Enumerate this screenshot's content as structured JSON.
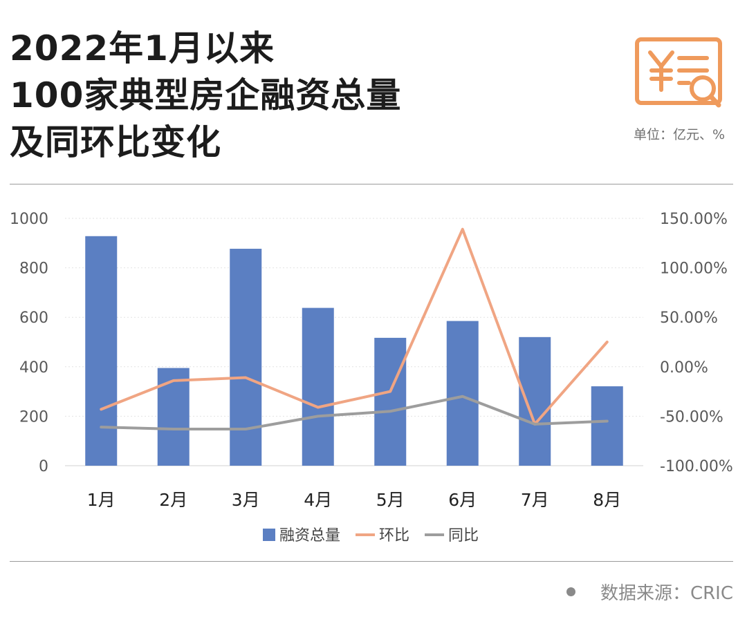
{
  "header": {
    "title_lines": [
      "2022年1月以来",
      "100家典型房企融资总量",
      "及同环比变化"
    ],
    "unit": "单位：亿元、%"
  },
  "footer": {
    "source": "数据来源：CRIC"
  },
  "colors": {
    "bar": "#5b7fc2",
    "mom": "#f0a583",
    "yoy": "#9d9d9d",
    "icon": "#ef9a5c"
  },
  "icon": {
    "name": "finance-search-icon"
  },
  "chart_data": {
    "type": "bar",
    "categories": [
      "1月",
      "2月",
      "3月",
      "4月",
      "5月",
      "6月",
      "7月",
      "8月"
    ],
    "series": [
      {
        "name": "融资总量",
        "type": "bar",
        "axis": "left",
        "values": [
          928,
          395,
          877,
          638,
          517,
          585,
          520,
          321
        ]
      },
      {
        "name": "环比",
        "type": "line",
        "axis": "right",
        "values": [
          -43,
          -14,
          -11,
          -41,
          -25,
          139,
          -58,
          25
        ]
      },
      {
        "name": "同比",
        "type": "line",
        "axis": "right",
        "values": [
          -61,
          -63,
          -63,
          -50,
          -45,
          -30,
          -58,
          -55
        ]
      }
    ],
    "y_left": {
      "ylim": [
        0,
        1000
      ],
      "ticks": [
        "0",
        "200",
        "400",
        "600",
        "800",
        "1000"
      ]
    },
    "y_right": {
      "ylim": [
        -100,
        150
      ],
      "ticks": [
        "-100.00%",
        "-50.00%",
        "0.00%",
        "50.00%",
        "100.00%",
        "150.00%"
      ]
    },
    "grid": true,
    "legend_position": "bottom"
  }
}
